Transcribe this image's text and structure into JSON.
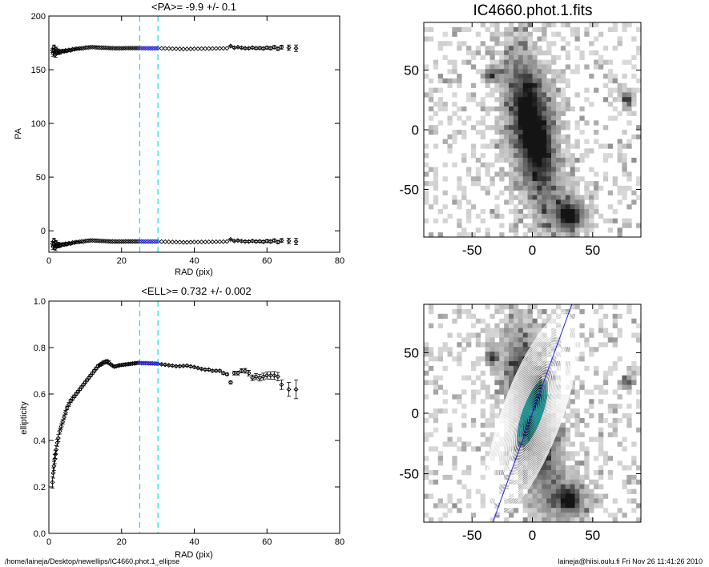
{
  "footer": {
    "left": "/home/laineja/Desktop/newellips/IC4660.phot.1_ellipse",
    "right": "laineja@hiisi.oulu.fi  Fri Nov 26 11:41:26 2010"
  },
  "colors": {
    "marker_line": "#00e5e5",
    "highlight": "#1e1ecc",
    "fit_line": "#2222dd",
    "contour": "#ffffff",
    "contour_inner": "#2fb3b3"
  },
  "image_panels": [
    {
      "title": "IC4660.phot.1.fits",
      "x_ticks": [
        "-50",
        "0",
        "50"
      ],
      "y_ticks": [
        "50",
        "0",
        "-50"
      ]
    },
    {
      "title": "",
      "x_ticks": [
        "-50",
        "0",
        "50"
      ],
      "y_ticks": [
        "50",
        "0",
        "-50"
      ]
    }
  ],
  "chart_data": [
    {
      "type": "scatter",
      "title": "<PA>=  -9.9 +/-   0.1",
      "xlabel": "RAD (pix)",
      "ylabel": "PA",
      "xlim": [
        0,
        80
      ],
      "ylim": [
        -20,
        200
      ],
      "xticks": [
        0,
        20,
        40,
        60,
        80
      ],
      "yticks": [
        0,
        50,
        100,
        150,
        200
      ],
      "vlines": [
        25,
        30
      ],
      "highlight_range": [
        25,
        30
      ],
      "series": [
        {
          "name": "PA",
          "x": [
            1.0,
            1.2,
            1.4,
            1.6,
            1.8,
            2.0,
            2.3,
            2.6,
            3.0,
            3.4,
            3.8,
            4.2,
            4.6,
            5.0,
            5.5,
            6.0,
            6.5,
            7.0,
            7.5,
            8.0,
            8.5,
            9.0,
            9.5,
            10.0,
            10.5,
            11.0,
            11.5,
            12.0,
            12.5,
            13.0,
            13.5,
            14.0,
            14.5,
            15.0,
            15.5,
            16.0,
            16.5,
            17.0,
            17.5,
            18.0,
            18.5,
            19.0,
            19.5,
            20.0,
            20.5,
            21.0,
            21.5,
            22.0,
            22.5,
            23.0,
            23.5,
            24.0,
            24.5,
            25.0,
            25.5,
            26.0,
            26.5,
            27.0,
            27.5,
            28.0,
            28.5,
            29.0,
            29.5,
            30.0,
            31.0,
            32.0,
            33.0,
            34.0,
            35.0,
            36.0,
            37.0,
            38.0,
            39.0,
            40.0,
            41.0,
            42.0,
            43.0,
            44.0,
            45.0,
            46.0,
            47.0,
            48.0,
            49.0,
            50.0,
            51.0,
            52.0,
            53.0,
            54.0,
            55.0,
            56.0,
            57.0,
            58.0,
            59.0,
            60.0,
            61.0,
            62.0,
            63.0,
            64.0,
            66.0,
            68.0
          ],
          "y": [
            -12.0,
            -15.0,
            -9.0,
            -13.5,
            -16.0,
            -11.0,
            -14.0,
            -12.5,
            -14.0,
            -13.0,
            -12.5,
            -13.0,
            -12.0,
            -12.5,
            -11.5,
            -12.0,
            -11.0,
            -11.0,
            -10.5,
            -10.5,
            -10.2,
            -10.0,
            -10.0,
            -9.5,
            -9.3,
            -9.2,
            -9.0,
            -9.0,
            -9.1,
            -9.2,
            -9.3,
            -9.4,
            -9.5,
            -9.5,
            -9.6,
            -9.7,
            -9.8,
            -9.9,
            -9.9,
            -10.0,
            -10.0,
            -10.0,
            -10.0,
            -10.0,
            -10.0,
            -9.9,
            -9.9,
            -9.9,
            -9.9,
            -9.9,
            -9.9,
            -9.9,
            -9.9,
            -9.9,
            -9.9,
            -10.0,
            -10.0,
            -10.0,
            -10.0,
            -10.0,
            -10.0,
            -10.0,
            -10.0,
            -10.0,
            -10.1,
            -10.2,
            -10.3,
            -10.4,
            -10.5,
            -10.6,
            -10.7,
            -10.7,
            -10.6,
            -10.5,
            -10.5,
            -10.4,
            -10.4,
            -10.3,
            -10.3,
            -10.2,
            -10.2,
            -10.1,
            -10.0,
            -8.0,
            -9.5,
            -9.0,
            -9.6,
            -10.0,
            -10.0,
            -9.5,
            -10.0,
            -9.8,
            -10.2,
            -9.5,
            -10.0,
            -9.0,
            -10.5,
            -9.0,
            -9.5,
            -10.0
          ],
          "mirror_offset": 180,
          "yerr": [
            2.0,
            2.5,
            2.0,
            2.2,
            2.5,
            2.0,
            2.0,
            1.8,
            1.5,
            1.5,
            1.2,
            1.2,
            1.0,
            1.0,
            0.8,
            0.8,
            0.6,
            0.6,
            0.5,
            0.5,
            0.5,
            0.4,
            0.4,
            0.4,
            0.3,
            0.3,
            0.3,
            0.3,
            0.3,
            0.3,
            0.3,
            0.3,
            0.3,
            0.3,
            0.3,
            0.3,
            0.3,
            0.3,
            0.3,
            0.3,
            0.3,
            0.3,
            0.3,
            0.3,
            0.3,
            0.3,
            0.3,
            0.3,
            0.3,
            0.3,
            0.3,
            0.3,
            0.3,
            0.3,
            0.3,
            0.3,
            0.3,
            0.3,
            0.3,
            0.3,
            0.3,
            0.3,
            0.3,
            0.3,
            0.3,
            0.3,
            0.3,
            0.3,
            0.3,
            0.3,
            0.3,
            0.3,
            0.3,
            0.3,
            0.3,
            0.3,
            0.3,
            0.3,
            0.3,
            0.3,
            0.3,
            0.3,
            0.3,
            0.5,
            0.6,
            0.6,
            0.7,
            0.8,
            0.8,
            0.9,
            1.0,
            1.0,
            1.2,
            1.3,
            1.4,
            1.5,
            1.6,
            1.8,
            2.5,
            3.0
          ]
        }
      ]
    },
    {
      "type": "scatter",
      "title": "<ELL>= 0.732 +/-  0.002",
      "xlabel": "RAD (pix)",
      "ylabel": "ellipticity",
      "xlim": [
        0,
        80
      ],
      "ylim": [
        0.0,
        1.0
      ],
      "xticks": [
        0,
        20,
        40,
        60,
        80
      ],
      "yticks": [
        0.0,
        0.2,
        0.4,
        0.6,
        0.8,
        1.0
      ],
      "vlines": [
        25,
        30
      ],
      "highlight_range": [
        25,
        30
      ],
      "series": [
        {
          "name": "ellipticity",
          "x": [
            1.0,
            1.2,
            1.4,
            1.6,
            1.8,
            2.0,
            2.3,
            2.6,
            3.0,
            3.4,
            3.8,
            4.2,
            4.6,
            5.0,
            5.5,
            6.0,
            6.5,
            7.0,
            7.5,
            8.0,
            8.5,
            9.0,
            9.5,
            10.0,
            10.5,
            11.0,
            11.5,
            12.0,
            12.5,
            13.0,
            13.5,
            14.0,
            14.5,
            15.0,
            15.5,
            16.0,
            16.5,
            17.0,
            17.5,
            18.0,
            18.5,
            19.0,
            19.5,
            20.0,
            20.5,
            21.0,
            21.5,
            22.0,
            22.5,
            23.0,
            23.5,
            24.0,
            24.5,
            25.0,
            25.5,
            26.0,
            26.5,
            27.0,
            27.5,
            28.0,
            28.5,
            29.0,
            29.5,
            30.0,
            31.0,
            32.0,
            33.0,
            34.0,
            35.0,
            36.0,
            37.0,
            38.0,
            39.0,
            40.0,
            41.0,
            42.0,
            43.0,
            44.0,
            45.0,
            46.0,
            47.0,
            48.0,
            49.0,
            50.0,
            51.0,
            52.0,
            53.0,
            54.0,
            55.0,
            56.0,
            57.0,
            58.0,
            59.0,
            60.0,
            61.0,
            62.0,
            63.0,
            64.0,
            66.0,
            68.0
          ],
          "y": [
            0.22,
            0.26,
            0.29,
            0.32,
            0.34,
            0.36,
            0.39,
            0.41,
            0.44,
            0.46,
            0.48,
            0.5,
            0.52,
            0.54,
            0.555,
            0.57,
            0.58,
            0.59,
            0.6,
            0.61,
            0.62,
            0.63,
            0.64,
            0.65,
            0.66,
            0.67,
            0.68,
            0.69,
            0.7,
            0.71,
            0.72,
            0.725,
            0.73,
            0.735,
            0.738,
            0.74,
            0.735,
            0.728,
            0.722,
            0.718,
            0.72,
            0.722,
            0.724,
            0.725,
            0.726,
            0.727,
            0.728,
            0.729,
            0.73,
            0.731,
            0.732,
            0.733,
            0.734,
            0.734,
            0.733,
            0.733,
            0.733,
            0.733,
            0.732,
            0.732,
            0.732,
            0.731,
            0.731,
            0.73,
            0.728,
            0.726,
            0.724,
            0.722,
            0.72,
            0.72,
            0.721,
            0.722,
            0.719,
            0.716,
            0.712,
            0.708,
            0.705,
            0.705,
            0.7,
            0.7,
            0.7,
            0.69,
            0.685,
            0.65,
            0.69,
            0.69,
            0.7,
            0.7,
            0.69,
            0.67,
            0.675,
            0.67,
            0.675,
            0.68,
            0.68,
            0.68,
            0.675,
            0.64,
            0.62,
            0.62
          ],
          "yerr": [
            0.025,
            0.022,
            0.02,
            0.02,
            0.018,
            0.018,
            0.015,
            0.015,
            0.012,
            0.012,
            0.01,
            0.01,
            0.009,
            0.008,
            0.008,
            0.007,
            0.007,
            0.006,
            0.006,
            0.006,
            0.005,
            0.005,
            0.005,
            0.005,
            0.005,
            0.005,
            0.005,
            0.005,
            0.006,
            0.006,
            0.006,
            0.006,
            0.007,
            0.007,
            0.007,
            0.008,
            0.008,
            0.004,
            0.004,
            0.004,
            0.004,
            0.003,
            0.003,
            0.003,
            0.003,
            0.003,
            0.003,
            0.003,
            0.003,
            0.003,
            0.003,
            0.003,
            0.003,
            0.003,
            0.003,
            0.003,
            0.003,
            0.003,
            0.003,
            0.003,
            0.003,
            0.003,
            0.003,
            0.003,
            0.003,
            0.003,
            0.003,
            0.003,
            0.003,
            0.003,
            0.003,
            0.003,
            0.003,
            0.003,
            0.003,
            0.003,
            0.004,
            0.004,
            0.004,
            0.004,
            0.004,
            0.005,
            0.005,
            0.006,
            0.008,
            0.008,
            0.009,
            0.01,
            0.012,
            0.012,
            0.013,
            0.014,
            0.015,
            0.015,
            0.016,
            0.017,
            0.018,
            0.02,
            0.03,
            0.04
          ]
        }
      ]
    }
  ]
}
